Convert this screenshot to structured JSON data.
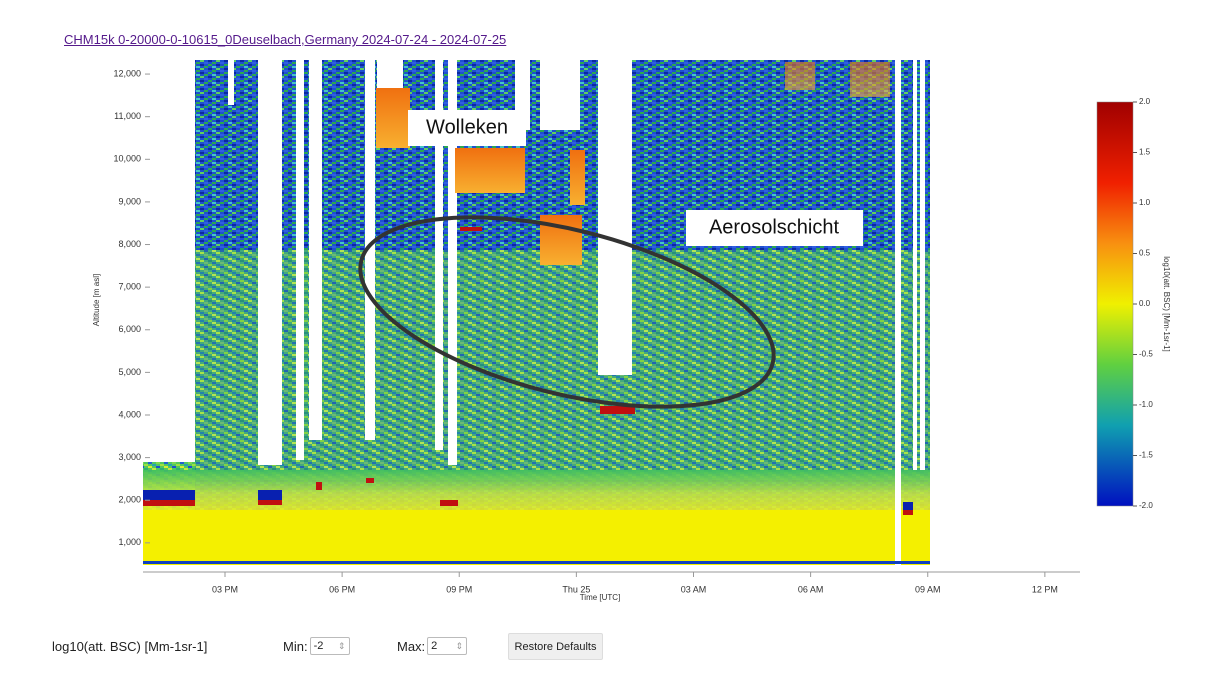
{
  "title_link": "CHM15k 0-20000-0-10615_0Deuselbach,Germany 2024-07-24 - 2024-07-25",
  "chart_data": {
    "type": "heatmap",
    "y_label": "Altitude [m asl]",
    "x_label": "Time [UTC]",
    "xlim": [
      12.9,
      36.9
    ],
    "xticks": [
      {
        "value": 15,
        "label": "03 PM"
      },
      {
        "value": 18,
        "label": "06 PM"
      },
      {
        "value": 21,
        "label": "09 PM"
      },
      {
        "value": 24,
        "label": "Thu 25"
      },
      {
        "value": 27,
        "label": "03 AM"
      },
      {
        "value": 30,
        "label": "06 AM"
      },
      {
        "value": 33,
        "label": "09 AM"
      },
      {
        "value": 36,
        "label": "12 PM"
      }
    ],
    "ylim": [
      480,
      12330
    ],
    "yticks": [
      {
        "value": 1000,
        "label": "1,000"
      },
      {
        "value": 2000,
        "label": "2,000"
      },
      {
        "value": 3000,
        "label": "3,000"
      },
      {
        "value": 4000,
        "label": "4,000"
      },
      {
        "value": 5000,
        "label": "5,000"
      },
      {
        "value": 6000,
        "label": "6,000"
      },
      {
        "value": 7000,
        "label": "7,000"
      },
      {
        "value": 8000,
        "label": "8,000"
      },
      {
        "value": 9000,
        "label": "9,000"
      },
      {
        "value": 10000,
        "label": "10,000"
      },
      {
        "value": 11000,
        "label": "11,000"
      },
      {
        "value": 12000,
        "label": "12,000"
      }
    ],
    "colorbar": {
      "label": "log10(att. BSC) [Mm-1sr-1]",
      "lim": [
        -2,
        2
      ],
      "ticks": [
        {
          "value": 2,
          "label": "2.0"
        },
        {
          "value": 1.5,
          "label": "1.5"
        },
        {
          "value": 1,
          "label": "1.0"
        },
        {
          "value": 0.5,
          "label": "0.5"
        },
        {
          "value": 0,
          "label": "0.0"
        },
        {
          "value": -0.5,
          "label": "-0.5"
        },
        {
          "value": -1,
          "label": "-1.0"
        },
        {
          "value": -1.5,
          "label": "-1.5"
        },
        {
          "value": -2,
          "label": "-2.0"
        }
      ]
    },
    "annotations": [
      "Wolleken",
      "Aerosolschicht"
    ]
  },
  "controls": {
    "label": "log10(att. BSC) [Mm-1sr-1]",
    "min_label": "Min:",
    "min_value": -2,
    "max_label": "Max:",
    "max_value": 2,
    "button": "Restore Defaults"
  }
}
